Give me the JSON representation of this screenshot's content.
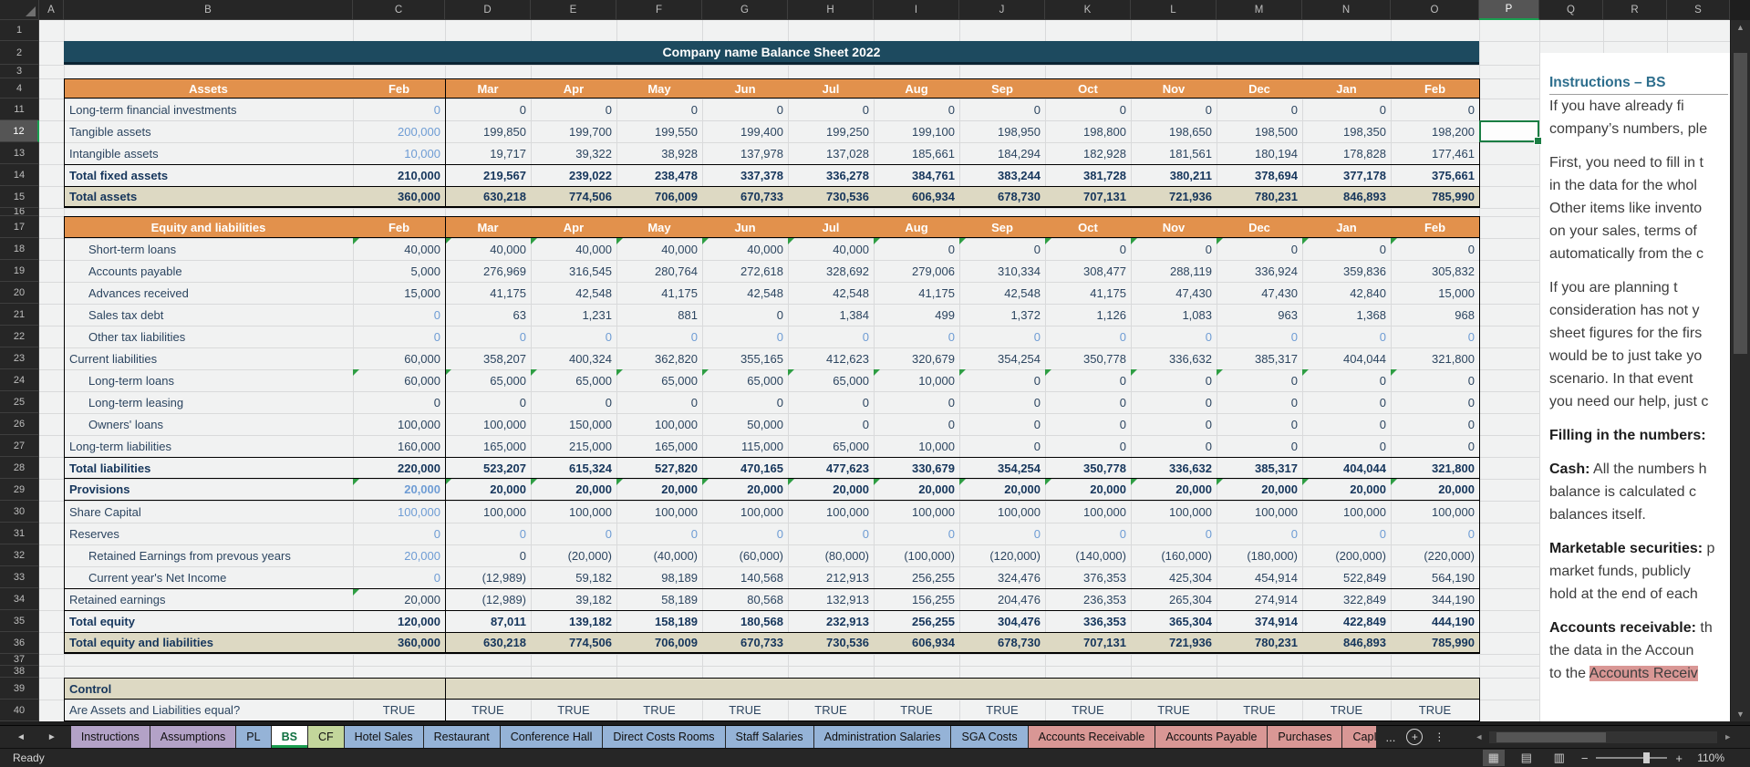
{
  "spreadsheet": {
    "title": "Company name Balance Sheet 2022",
    "column_letters": [
      "A",
      "B",
      "C",
      "D",
      "E",
      "F",
      "G",
      "H",
      "I",
      "J",
      "K",
      "L",
      "M",
      "N",
      "O",
      "P",
      "Q",
      "R",
      "S"
    ],
    "visible_row_numbers": [
      1,
      2,
      3,
      4,
      11,
      12,
      13,
      14,
      15,
      16,
      17,
      18,
      19,
      20,
      21,
      22,
      23,
      24,
      25,
      26,
      27,
      28,
      29,
      30,
      31,
      32,
      33,
      34,
      35,
      36,
      37,
      38,
      39,
      40
    ],
    "selected_cell": {
      "column": "P",
      "row": 12
    },
    "months": [
      "Feb",
      "Mar",
      "Apr",
      "May",
      "Jun",
      "Jul",
      "Aug",
      "Sep",
      "Oct",
      "Nov",
      "Dec",
      "Jan",
      "Feb"
    ],
    "sections": {
      "assets_header": "Assets",
      "equity_header": "Equity and liabilities",
      "control_header": "Control",
      "control_question": "Are Assets and Liabilities equal?",
      "control_values": [
        "TRUE",
        "TRUE",
        "TRUE",
        "TRUE",
        "TRUE",
        "TRUE",
        "TRUE",
        "TRUE",
        "TRUE",
        "TRUE",
        "TRUE",
        "TRUE",
        "TRUE"
      ]
    },
    "rows": [
      {
        "r": 11,
        "label": "Long-term financial investments",
        "kind": "item",
        "blue": "first",
        "vals": [
          "0",
          "0",
          "0",
          "0",
          "0",
          "0",
          "0",
          "0",
          "0",
          "0",
          "0",
          "0",
          "0"
        ]
      },
      {
        "r": 12,
        "label": "Tangible assets",
        "kind": "item",
        "blue": "first",
        "vals": [
          "200,000",
          "199,850",
          "199,700",
          "199,550",
          "199,400",
          "199,250",
          "199,100",
          "198,950",
          "198,800",
          "198,650",
          "198,500",
          "198,350",
          "198,200"
        ]
      },
      {
        "r": 13,
        "label": "Intangible assets",
        "kind": "item",
        "blue": "first",
        "vals": [
          "10,000",
          "19,717",
          "39,322",
          "38,928",
          "137,978",
          "137,028",
          "185,661",
          "184,294",
          "182,928",
          "181,561",
          "180,194",
          "178,828",
          "177,461"
        ]
      },
      {
        "r": 14,
        "label": "Total fixed assets",
        "kind": "total",
        "vals": [
          "210,000",
          "219,567",
          "239,022",
          "238,478",
          "337,378",
          "336,278",
          "384,761",
          "383,244",
          "381,728",
          "380,211",
          "378,694",
          "377,178",
          "375,661"
        ]
      },
      {
        "r": 15,
        "label": "Total assets",
        "kind": "grand",
        "vals": [
          "360,000",
          "630,218",
          "774,506",
          "706,009",
          "670,733",
          "730,536",
          "606,934",
          "678,730",
          "707,131",
          "721,936",
          "780,231",
          "846,893",
          "785,990"
        ]
      },
      {
        "r": 18,
        "label": "Short-term loans",
        "kind": "indent",
        "tri": "all",
        "vals": [
          "40,000",
          "40,000",
          "40,000",
          "40,000",
          "40,000",
          "40,000",
          "0",
          "0",
          "0",
          "0",
          "0",
          "0",
          "0"
        ]
      },
      {
        "r": 19,
        "label": "Accounts payable",
        "kind": "indent",
        "vals": [
          "5,000",
          "276,969",
          "316,545",
          "280,764",
          "272,618",
          "328,692",
          "279,006",
          "310,334",
          "308,477",
          "288,119",
          "336,924",
          "359,836",
          "305,832"
        ]
      },
      {
        "r": 20,
        "label": "Advances received",
        "kind": "indent",
        "vals": [
          "15,000",
          "41,175",
          "42,548",
          "41,175",
          "42,548",
          "42,548",
          "41,175",
          "42,548",
          "41,175",
          "47,430",
          "47,430",
          "42,840",
          "15,000"
        ]
      },
      {
        "r": 21,
        "label": "Sales tax debt",
        "kind": "indent",
        "blue": "first",
        "vals": [
          "0",
          "63",
          "1,231",
          "881",
          "0",
          "1,384",
          "499",
          "1,372",
          "1,126",
          "1,083",
          "963",
          "1,368",
          "968"
        ]
      },
      {
        "r": 22,
        "label": "Other tax liabilities",
        "kind": "indent",
        "blue": "all",
        "vals": [
          "0",
          "0",
          "0",
          "0",
          "0",
          "0",
          "0",
          "0",
          "0",
          "0",
          "0",
          "0",
          "0"
        ]
      },
      {
        "r": 23,
        "label": "Current liabilities",
        "kind": "item",
        "vals": [
          "60,000",
          "358,207",
          "400,324",
          "362,820",
          "355,165",
          "412,623",
          "320,679",
          "354,254",
          "350,778",
          "336,632",
          "385,317",
          "404,044",
          "321,800"
        ]
      },
      {
        "r": 24,
        "label": "Long-term loans",
        "kind": "indent",
        "tri": "all",
        "vals": [
          "60,000",
          "65,000",
          "65,000",
          "65,000",
          "65,000",
          "65,000",
          "10,000",
          "0",
          "0",
          "0",
          "0",
          "0",
          "0"
        ]
      },
      {
        "r": 25,
        "label": "Long-term leasing",
        "kind": "indent",
        "vals": [
          "0",
          "0",
          "0",
          "0",
          "0",
          "0",
          "0",
          "0",
          "0",
          "0",
          "0",
          "0",
          "0"
        ]
      },
      {
        "r": 26,
        "label": "Owners' loans",
        "kind": "indent",
        "vals": [
          "100,000",
          "100,000",
          "150,000",
          "100,000",
          "50,000",
          "0",
          "0",
          "0",
          "0",
          "0",
          "0",
          "0",
          "0"
        ]
      },
      {
        "r": 27,
        "label": "Long-term liabilities",
        "kind": "item",
        "vals": [
          "160,000",
          "165,000",
          "215,000",
          "165,000",
          "115,000",
          "65,000",
          "10,000",
          "0",
          "0",
          "0",
          "0",
          "0",
          "0"
        ]
      },
      {
        "r": 28,
        "label": "Total liabilities",
        "kind": "total",
        "vals": [
          "220,000",
          "523,207",
          "615,324",
          "527,820",
          "470,165",
          "477,623",
          "330,679",
          "354,254",
          "350,778",
          "336,632",
          "385,317",
          "404,044",
          "321,800"
        ]
      },
      {
        "r": 29,
        "label": "Provisions",
        "kind": "total",
        "blue": "first",
        "tri": "all",
        "vals": [
          "20,000",
          "20,000",
          "20,000",
          "20,000",
          "20,000",
          "20,000",
          "20,000",
          "20,000",
          "20,000",
          "20,000",
          "20,000",
          "20,000",
          "20,000"
        ]
      },
      {
        "r": 30,
        "label": "Share Capital",
        "kind": "item",
        "blue": "first",
        "vals": [
          "100,000",
          "100,000",
          "100,000",
          "100,000",
          "100,000",
          "100,000",
          "100,000",
          "100,000",
          "100,000",
          "100,000",
          "100,000",
          "100,000",
          "100,000"
        ]
      },
      {
        "r": 31,
        "label": "Reserves",
        "kind": "item",
        "blue": "all",
        "vals": [
          "0",
          "0",
          "0",
          "0",
          "0",
          "0",
          "0",
          "0",
          "0",
          "0",
          "0",
          "0",
          "0"
        ]
      },
      {
        "r": 32,
        "label": "Retained Earnings from prevous years",
        "kind": "indent",
        "blue": "first",
        "vals": [
          "20,000",
          "0",
          "(20,000)",
          "(40,000)",
          "(60,000)",
          "(80,000)",
          "(100,000)",
          "(120,000)",
          "(140,000)",
          "(160,000)",
          "(180,000)",
          "(200,000)",
          "(220,000)"
        ]
      },
      {
        "r": 33,
        "label": "Current year's Net Income",
        "kind": "indent",
        "blue": "first",
        "vals": [
          "0",
          "(12,989)",
          "59,182",
          "98,189",
          "140,568",
          "212,913",
          "256,255",
          "324,476",
          "376,353",
          "425,304",
          "454,914",
          "522,849",
          "564,190"
        ]
      },
      {
        "r": 34,
        "label": "Retained earnings",
        "kind": "item",
        "tri": "first",
        "vals": [
          "20,000",
          "(12,989)",
          "39,182",
          "58,189",
          "80,568",
          "132,913",
          "156,255",
          "204,476",
          "236,353",
          "265,304",
          "274,914",
          "322,849",
          "344,190"
        ]
      },
      {
        "r": 35,
        "label": "Total equity",
        "kind": "total",
        "vals": [
          "120,000",
          "87,011",
          "139,182",
          "158,189",
          "180,568",
          "232,913",
          "256,255",
          "304,476",
          "336,353",
          "365,304",
          "374,914",
          "422,849",
          "444,190"
        ]
      },
      {
        "r": 36,
        "label": "Total equity and liabilities",
        "kind": "grand",
        "vals": [
          "360,000",
          "630,218",
          "774,506",
          "706,009",
          "670,733",
          "730,536",
          "606,934",
          "678,730",
          "707,131",
          "721,936",
          "780,231",
          "846,893",
          "785,990"
        ]
      }
    ]
  },
  "instructions": {
    "title": "Instructions – BS",
    "lines": [
      [
        {
          "t": "If you have already fi"
        }
      ],
      [
        {
          "t": "company’s numbers, ple"
        }
      ],
      [],
      [
        {
          "t": "First, you need to fill in t"
        }
      ],
      [
        {
          "t": "in the data for the whol"
        }
      ],
      [
        {
          "t": "Other items like invento"
        }
      ],
      [
        {
          "t": "on your sales, terms of"
        }
      ],
      [
        {
          "t": "automatically from the c"
        }
      ],
      [],
      [
        {
          "t": "If you are planning t"
        }
      ],
      [
        {
          "t": "consideration has not y"
        }
      ],
      [
        {
          "t": "sheet figures for the firs"
        }
      ],
      [
        {
          "t": "would be to just take yo"
        }
      ],
      [
        {
          "t": "scenario. In that event"
        }
      ],
      [
        {
          "t": "you need our help, just c"
        }
      ],
      [],
      [
        {
          "b": "Filling in the numbers:"
        }
      ],
      [],
      [
        {
          "b": "Cash:"
        },
        {
          "t": " All the numbers h"
        }
      ],
      [
        {
          "t": "balance is calculated c"
        }
      ],
      [
        {
          "t": "balances itself."
        }
      ],
      [],
      [
        {
          "b": "Marketable securities:"
        },
        {
          "t": " p"
        }
      ],
      [
        {
          "t": "market funds, publicly"
        }
      ],
      [
        {
          "t": "hold at the end of each"
        }
      ],
      [],
      [
        {
          "b": "Accounts receivable:"
        },
        {
          "t": " th"
        }
      ],
      [
        {
          "t": "the data in the Accoun"
        }
      ],
      [
        {
          "t": "to the "
        },
        {
          "h": "Accounts Receiv"
        }
      ]
    ]
  },
  "sheet_tabs": {
    "tabs": [
      {
        "label": "Instructions",
        "color": "purple"
      },
      {
        "label": "Assumptions",
        "color": "purple"
      },
      {
        "label": "PL",
        "color": "blue"
      },
      {
        "label": "BS",
        "color": "active",
        "active": true
      },
      {
        "label": "CF",
        "color": "green"
      },
      {
        "label": "Hotel Sales",
        "color": "blue"
      },
      {
        "label": "Restaurant",
        "color": "blue"
      },
      {
        "label": "Conference Hall",
        "color": "blue"
      },
      {
        "label": "Direct Costs Rooms",
        "color": "blue"
      },
      {
        "label": "Staff Salaries",
        "color": "blue"
      },
      {
        "label": "Administration Salaries",
        "color": "blue"
      },
      {
        "label": "SGA Costs",
        "color": "blue"
      },
      {
        "label": "Accounts Receivable",
        "color": "red"
      },
      {
        "label": "Accounts Payable",
        "color": "red"
      },
      {
        "label": "Purchases",
        "color": "red"
      },
      {
        "label": "CapI",
        "color": "red",
        "truncated": true
      }
    ],
    "overflow_ellipsis": "...",
    "nav_left": "◄",
    "nav_right": "►",
    "add_sheet": "+",
    "more_menu": "⋮"
  },
  "status_bar": {
    "mode": "Ready",
    "zoom_label": "110%",
    "zoom_minus": "—",
    "zoom_plus": "+",
    "view_icons": [
      "normal-view",
      "page-layout-view",
      "page-break-view"
    ]
  },
  "colors": {
    "title_navy": "#1d4a5f",
    "header_orange": "#e2914c",
    "total_tan": "#ddd9c3",
    "input_blue": "#6e9cd4",
    "text_navy": "#16365c",
    "selection_green": "#1a7d43",
    "error_triangle_green": "#2f9e44",
    "tab_purple": "#b3a2c7",
    "tab_blue": "#95b3d7",
    "tab_green": "#c3d69b",
    "tab_red": "#d99795",
    "highlight_salmon": "#d99795"
  }
}
